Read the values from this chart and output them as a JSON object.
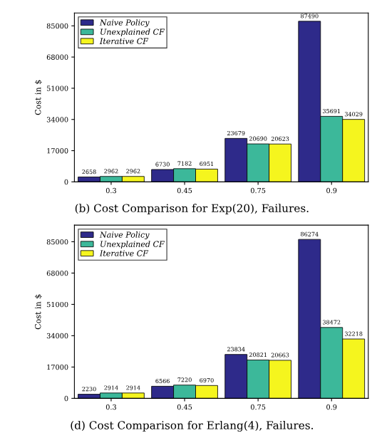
{
  "chart_data": [
    {
      "type": "bar",
      "title": "(b) Cost Comparison for Exp(20), Failures.",
      "ylabel": "Cost in $",
      "categories": [
        "0.3",
        "0.45",
        "0.75",
        "0.9"
      ],
      "series": [
        {
          "name": "Naive Policy",
          "color": "#2e2a8a",
          "values": [
            2658,
            6730,
            23679,
            87490
          ]
        },
        {
          "name": "Unexplained CF",
          "color": "#3cb89a",
          "values": [
            2962,
            7182,
            20690,
            35691
          ]
        },
        {
          "name": "Iterative CF",
          "color": "#f5f51e",
          "values": [
            2962,
            6951,
            20623,
            34029
          ]
        }
      ],
      "ylim": [
        0,
        92000
      ],
      "yticks": [
        0,
        17000,
        34000,
        51000,
        68000,
        85000
      ],
      "data_labels": true,
      "legend": "top left",
      "grid": false
    },
    {
      "type": "bar",
      "title": "(d) Cost Comparison for Erlang(4), Failures.",
      "ylabel": "Cost in $",
      "categories": [
        "0.3",
        "0.45",
        "0.75",
        "0.9"
      ],
      "series": [
        {
          "name": "Naive Policy",
          "color": "#2e2a8a",
          "values": [
            2230,
            6566,
            23834,
            86274
          ]
        },
        {
          "name": "Unexplained CF",
          "color": "#3cb89a",
          "values": [
            2914,
            7220,
            20821,
            38472
          ]
        },
        {
          "name": "Iterative CF",
          "color": "#f5f51e",
          "values": [
            2914,
            6970,
            20663,
            32218
          ]
        }
      ],
      "ylim": [
        0,
        94000
      ],
      "yticks": [
        0,
        17000,
        34000,
        51000,
        68000,
        85000
      ],
      "data_labels": true,
      "legend": "top left",
      "grid": false
    }
  ]
}
